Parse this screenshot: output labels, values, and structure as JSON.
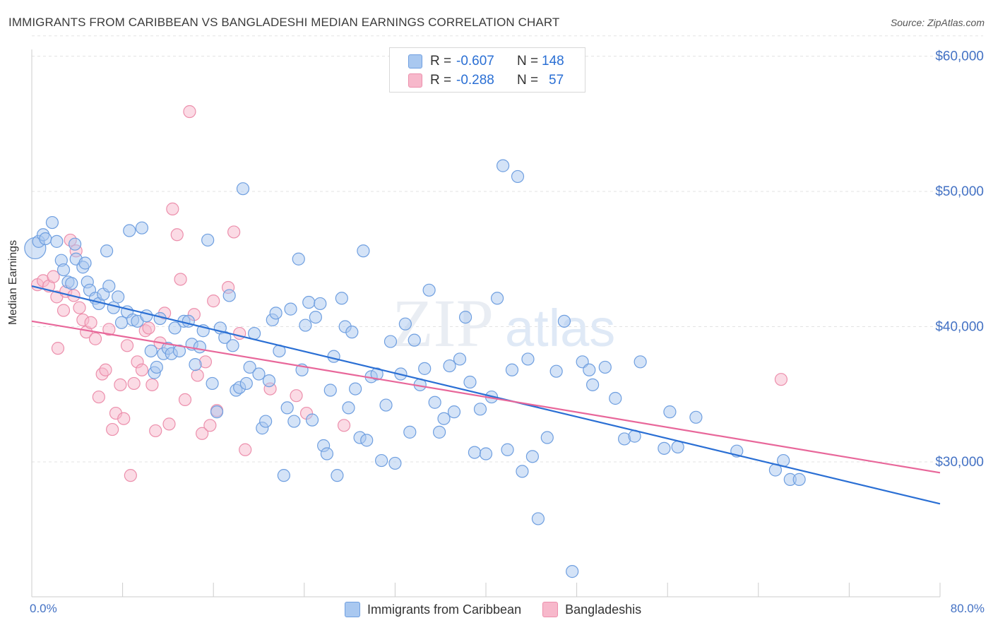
{
  "header": {
    "title": "IMMIGRANTS FROM CARIBBEAN VS BANGLADESHI MEDIAN EARNINGS CORRELATION CHART",
    "source": "Source: ZipAtlas.com"
  },
  "stats": {
    "rows": [
      {
        "r_label": "R =",
        "r_value": "-0.607",
        "n_label": "N =",
        "n_value": "148",
        "color": "#a9c8f0"
      },
      {
        "r_label": "R =",
        "r_value": "-0.288",
        "n_label": "N =",
        "n_value": "57",
        "color": "#f7b8cb"
      }
    ]
  },
  "axes": {
    "x_min_label": "0.0%",
    "x_max_label": "80.0%",
    "ylabel": "Median Earnings"
  },
  "legend": {
    "items": [
      {
        "label": "Immigrants from Caribbean",
        "color": "#a9c8f0"
      },
      {
        "label": "Bangladeshis",
        "color": "#f7b8cb"
      }
    ]
  },
  "colors": {
    "caribbean_fill": "#a9c8f0",
    "caribbean_stroke": "#6f9fe0",
    "caribbean_line": "#2a6fd4",
    "bangladeshi_fill": "#f7b8cb",
    "bangladeshi_stroke": "#ec8fac",
    "bangladeshi_line": "#e8679a",
    "tick_label": "#4472c4"
  },
  "chart_data": {
    "type": "scatter",
    "xlim": [
      0,
      80
    ],
    "ylim": [
      20000,
      62000
    ],
    "yticks": [
      30000,
      40000,
      50000,
      60000
    ],
    "ytick_labels": [
      "$30,000",
      "$40,000",
      "$50,000",
      "$60,000"
    ],
    "grid": true,
    "legend_position": "bottom",
    "series": [
      {
        "name": "Immigrants from Caribbean",
        "trendline": {
          "x": [
            0,
            80
          ],
          "y": [
            43000,
            26900
          ]
        },
        "points": [
          [
            0.3,
            45800
          ],
          [
            0.6,
            46300
          ],
          [
            1.0,
            46800
          ],
          [
            1.2,
            46500
          ],
          [
            1.8,
            47700
          ],
          [
            2.2,
            46300
          ],
          [
            2.6,
            44900
          ],
          [
            2.8,
            44200
          ],
          [
            3.2,
            43300
          ],
          [
            3.5,
            43200
          ],
          [
            3.8,
            46100
          ],
          [
            3.9,
            45000
          ],
          [
            4.5,
            44400
          ],
          [
            4.7,
            44700
          ],
          [
            4.9,
            43300
          ],
          [
            5.1,
            42700
          ],
          [
            5.6,
            42100
          ],
          [
            5.9,
            41700
          ],
          [
            6.3,
            42400
          ],
          [
            6.6,
            45600
          ],
          [
            6.8,
            43000
          ],
          [
            7.2,
            41400
          ],
          [
            7.6,
            42200
          ],
          [
            7.9,
            40300
          ],
          [
            8.4,
            41100
          ],
          [
            8.6,
            47100
          ],
          [
            8.9,
            40500
          ],
          [
            9.3,
            40400
          ],
          [
            9.7,
            47300
          ],
          [
            10.1,
            40800
          ],
          [
            10.5,
            38200
          ],
          [
            10.8,
            36600
          ],
          [
            11.0,
            37000
          ],
          [
            11.3,
            40600
          ],
          [
            11.6,
            38000
          ],
          [
            12.0,
            38400
          ],
          [
            12.3,
            38000
          ],
          [
            12.6,
            39900
          ],
          [
            13.0,
            38200
          ],
          [
            13.4,
            40400
          ],
          [
            13.8,
            40400
          ],
          [
            14.1,
            38700
          ],
          [
            14.4,
            37200
          ],
          [
            14.8,
            38500
          ],
          [
            15.1,
            39700
          ],
          [
            15.5,
            46400
          ],
          [
            15.9,
            35800
          ],
          [
            16.3,
            33700
          ],
          [
            16.6,
            39900
          ],
          [
            17.0,
            39200
          ],
          [
            17.4,
            42300
          ],
          [
            17.7,
            38600
          ],
          [
            18.0,
            35300
          ],
          [
            18.3,
            35500
          ],
          [
            18.6,
            50200
          ],
          [
            18.9,
            35800
          ],
          [
            19.2,
            37000
          ],
          [
            19.6,
            39500
          ],
          [
            20.0,
            36500
          ],
          [
            20.3,
            32500
          ],
          [
            20.6,
            33000
          ],
          [
            20.9,
            36000
          ],
          [
            21.2,
            40500
          ],
          [
            21.5,
            41000
          ],
          [
            21.8,
            38200
          ],
          [
            22.2,
            29000
          ],
          [
            22.5,
            34000
          ],
          [
            22.8,
            41300
          ],
          [
            23.1,
            33000
          ],
          [
            23.5,
            45000
          ],
          [
            23.8,
            36800
          ],
          [
            24.1,
            40100
          ],
          [
            24.4,
            41800
          ],
          [
            24.7,
            33100
          ],
          [
            25.0,
            40700
          ],
          [
            25.4,
            41700
          ],
          [
            25.7,
            31200
          ],
          [
            26.0,
            30600
          ],
          [
            26.3,
            35300
          ],
          [
            26.6,
            37800
          ],
          [
            26.9,
            29000
          ],
          [
            27.3,
            42100
          ],
          [
            27.6,
            40000
          ],
          [
            27.9,
            34000
          ],
          [
            28.2,
            39600
          ],
          [
            28.5,
            35400
          ],
          [
            28.9,
            31800
          ],
          [
            29.2,
            45600
          ],
          [
            29.5,
            31600
          ],
          [
            29.9,
            36300
          ],
          [
            30.4,
            36500
          ],
          [
            30.8,
            30100
          ],
          [
            31.2,
            34200
          ],
          [
            31.6,
            38900
          ],
          [
            32.0,
            29900
          ],
          [
            32.5,
            36500
          ],
          [
            32.9,
            40200
          ],
          [
            33.3,
            32200
          ],
          [
            33.7,
            39000
          ],
          [
            34.2,
            35700
          ],
          [
            34.6,
            36900
          ],
          [
            35.0,
            42700
          ],
          [
            35.5,
            34400
          ],
          [
            35.9,
            32200
          ],
          [
            36.3,
            33200
          ],
          [
            36.8,
            37100
          ],
          [
            37.2,
            33700
          ],
          [
            37.7,
            37600
          ],
          [
            38.2,
            40700
          ],
          [
            38.6,
            35900
          ],
          [
            39.0,
            30700
          ],
          [
            39.5,
            33900
          ],
          [
            40.0,
            30600
          ],
          [
            40.5,
            34800
          ],
          [
            41.0,
            42100
          ],
          [
            41.5,
            51900
          ],
          [
            41.9,
            30900
          ],
          [
            42.3,
            36800
          ],
          [
            42.8,
            51100
          ],
          [
            43.2,
            29300
          ],
          [
            43.7,
            37600
          ],
          [
            44.1,
            30400
          ],
          [
            44.6,
            25800
          ],
          [
            45.4,
            31800
          ],
          [
            46.2,
            36700
          ],
          [
            46.9,
            40400
          ],
          [
            47.6,
            21900
          ],
          [
            48.5,
            37400
          ],
          [
            49.1,
            36800
          ],
          [
            49.4,
            35700
          ],
          [
            50.5,
            37000
          ],
          [
            51.4,
            34700
          ],
          [
            52.2,
            31700
          ],
          [
            53.1,
            31900
          ],
          [
            53.6,
            37400
          ],
          [
            55.7,
            31000
          ],
          [
            56.2,
            33700
          ],
          [
            56.9,
            31100
          ],
          [
            58.5,
            33300
          ],
          [
            62.1,
            30800
          ],
          [
            65.5,
            29400
          ],
          [
            66.2,
            30100
          ],
          [
            66.8,
            28700
          ],
          [
            67.6,
            28700
          ]
        ]
      },
      {
        "name": "Bangladeshis",
        "trendline": {
          "x": [
            0,
            80
          ],
          "y": [
            40400,
            29200
          ]
        },
        "points": [
          [
            0.5,
            43100
          ],
          [
            1.0,
            43400
          ],
          [
            1.5,
            43000
          ],
          [
            1.9,
            43700
          ],
          [
            2.2,
            42200
          ],
          [
            2.3,
            38400
          ],
          [
            2.8,
            41200
          ],
          [
            3.0,
            42600
          ],
          [
            3.4,
            46400
          ],
          [
            3.7,
            42300
          ],
          [
            3.9,
            45600
          ],
          [
            4.2,
            41400
          ],
          [
            4.5,
            40500
          ],
          [
            4.8,
            39600
          ],
          [
            5.2,
            40300
          ],
          [
            5.6,
            39100
          ],
          [
            5.9,
            34800
          ],
          [
            6.2,
            36500
          ],
          [
            6.5,
            36800
          ],
          [
            6.8,
            39800
          ],
          [
            7.1,
            32400
          ],
          [
            7.4,
            33600
          ],
          [
            7.8,
            35700
          ],
          [
            8.1,
            33200
          ],
          [
            8.4,
            38600
          ],
          [
            8.7,
            29000
          ],
          [
            9.0,
            35800
          ],
          [
            9.3,
            37400
          ],
          [
            9.7,
            36800
          ],
          [
            10.0,
            39700
          ],
          [
            10.3,
            39900
          ],
          [
            10.6,
            35700
          ],
          [
            10.9,
            32300
          ],
          [
            11.3,
            38800
          ],
          [
            11.7,
            41000
          ],
          [
            12.1,
            32800
          ],
          [
            12.4,
            48700
          ],
          [
            12.8,
            46800
          ],
          [
            13.1,
            43500
          ],
          [
            13.5,
            34600
          ],
          [
            13.9,
            55900
          ],
          [
            14.3,
            40900
          ],
          [
            14.6,
            36400
          ],
          [
            15.0,
            32100
          ],
          [
            15.3,
            37400
          ],
          [
            15.7,
            32700
          ],
          [
            16.0,
            41900
          ],
          [
            16.3,
            33800
          ],
          [
            17.3,
            42900
          ],
          [
            17.8,
            47000
          ],
          [
            18.3,
            39500
          ],
          [
            18.8,
            30900
          ],
          [
            21.0,
            35400
          ],
          [
            23.3,
            34900
          ],
          [
            24.2,
            33600
          ],
          [
            27.5,
            32700
          ],
          [
            66.0,
            36100
          ]
        ]
      }
    ]
  }
}
